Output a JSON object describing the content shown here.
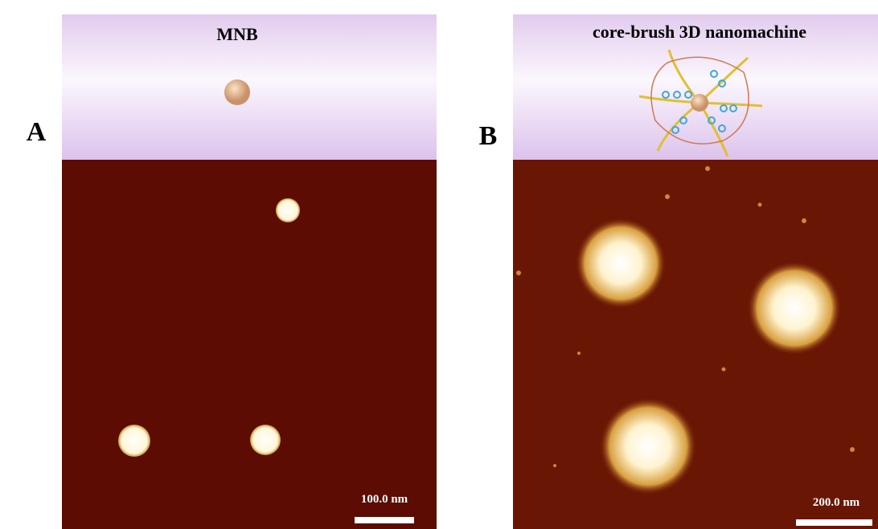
{
  "panels": [
    {
      "label": "A",
      "title": "MNB",
      "scale_bar": "100.0 nm"
    },
    {
      "label": "B",
      "title": "core-brush 3D nanomachine",
      "scale_bar": "200.0 nm"
    }
  ]
}
